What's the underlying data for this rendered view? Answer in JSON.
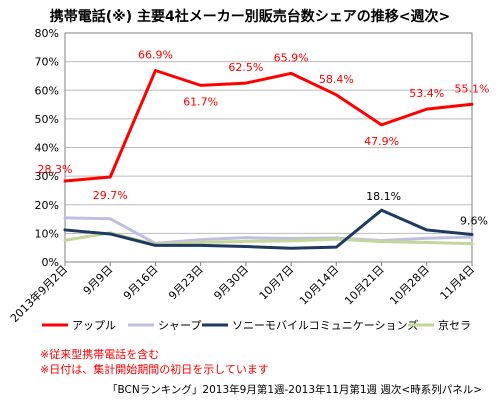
{
  "chart_data": {
    "type": "line",
    "title": "携帯電話(※) 主要4社メーカー別販売台数シェアの推移<週次>",
    "x": [
      "2013年9月2日",
      "9月9日",
      "9月16日",
      "9月23日",
      "9月30日",
      "10月7日",
      "10月14日",
      "10月21日",
      "10月28日",
      "11月4日"
    ],
    "ylim": [
      0,
      80
    ],
    "yticks": [
      "0%",
      "10%",
      "20%",
      "30%",
      "40%",
      "50%",
      "60%",
      "70%",
      "80%"
    ],
    "grid": true,
    "legend_position": "bottom",
    "series": [
      {
        "name": "アップル",
        "color": "#ff0000",
        "values": [
          28.3,
          29.7,
          66.9,
          61.7,
          62.5,
          65.9,
          58.4,
          47.9,
          53.4,
          55.1
        ],
        "labels": [
          "28.3%",
          "29.7%",
          "66.9%",
          "61.7%",
          "62.5%",
          "65.9%",
          "58.4%",
          "47.9%",
          "53.4%",
          "55.1%"
        ]
      },
      {
        "name": "シャープ",
        "color": "#c0bfe0",
        "values": [
          15.4,
          15.1,
          6.5,
          7.8,
          8.5,
          8.2,
          8.4,
          7.5,
          8.3,
          8.7
        ]
      },
      {
        "name": "ソニーモバイルコミュニケーションズ",
        "color": "#1f3a5f",
        "values": [
          11.2,
          9.8,
          5.8,
          5.8,
          5.4,
          4.8,
          5.2,
          18.1,
          11.2,
          9.6
        ],
        "labels": [
          "",
          "",
          "",
          "",
          "",
          "",
          "",
          "18.1%",
          "",
          "9.6%"
        ]
      },
      {
        "name": "京セラ",
        "color": "#c3d69b",
        "values": [
          7.6,
          10.2,
          6.1,
          6.8,
          7.2,
          7.4,
          8.0,
          7.1,
          6.8,
          6.4
        ]
      }
    ]
  },
  "notes": [
    "※従来型携帯電話を含む",
    "※日付は、集計開始期間の初日を示しています"
  ],
  "source": "「BCNランキング」2013年9月第1週-2013年11月第1週 週次<時系列パネル>"
}
